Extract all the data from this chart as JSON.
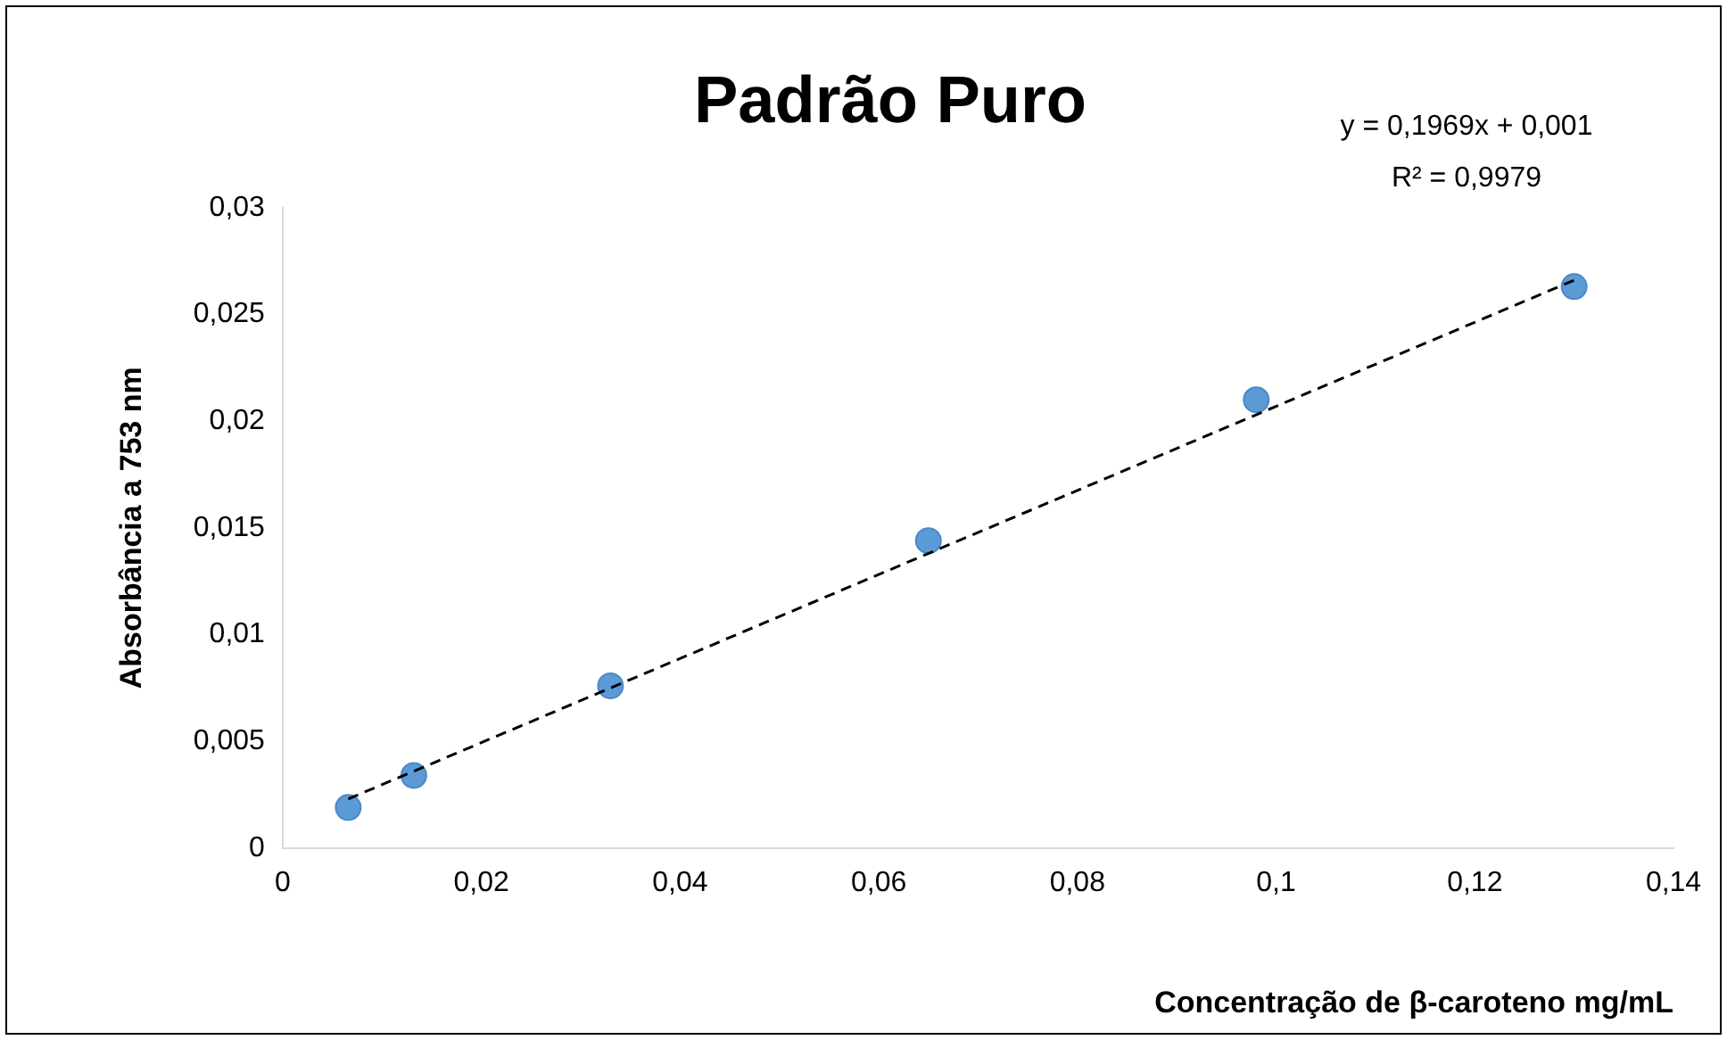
{
  "chart_data": {
    "type": "scatter",
    "title": "Padrão Puro",
    "xlabel": "Concentração de β-caroteno mg/mL",
    "ylabel": "Absorbância a 753 nm",
    "annotations": [
      "y = 0,1969x + 0,001",
      "R² = 0,9979"
    ],
    "series": [
      {
        "color": "#5b9bd5",
        "x": [
          0.0066,
          0.0132,
          0.033,
          0.065,
          0.098,
          0.13
        ],
        "values": [
          0.0019,
          0.0034,
          0.0076,
          0.0144,
          0.021,
          0.0263
        ],
        "marker": "circle"
      },
      {
        "type": "line",
        "color": "#000000",
        "x": [
          0.0066,
          0.13
        ],
        "values": [
          0.0023,
          0.0266
        ],
        "marker": "none",
        "line_style": "dashed"
      }
    ],
    "xlim": [
      0,
      0.14
    ],
    "xticks": [
      0,
      {
        "value": 0.02,
        "label": "0,02"
      },
      {
        "value": 0.04,
        "label": "0,04"
      },
      {
        "value": 0.06,
        "label": "0,06"
      },
      {
        "value": 0.08,
        "label": "0,08"
      },
      {
        "value": 0.1,
        "label": "0,1"
      },
      {
        "value": 0.12,
        "label": "0,12"
      },
      {
        "value": 0.14,
        "label": "0,14"
      }
    ],
    "ylim": [
      0,
      0.03
    ],
    "yticks": [
      0,
      {
        "value": 0.005,
        "label": "0,005"
      },
      {
        "value": 0.01,
        "label": "0,01"
      },
      {
        "value": 0.015,
        "label": "0,015"
      },
      {
        "value": 0.02,
        "label": "0,02"
      },
      {
        "value": 0.025,
        "label": "0,025"
      },
      {
        "value": 0.03,
        "label": "0,03"
      }
    ],
    "grid": false,
    "legend": false
  }
}
